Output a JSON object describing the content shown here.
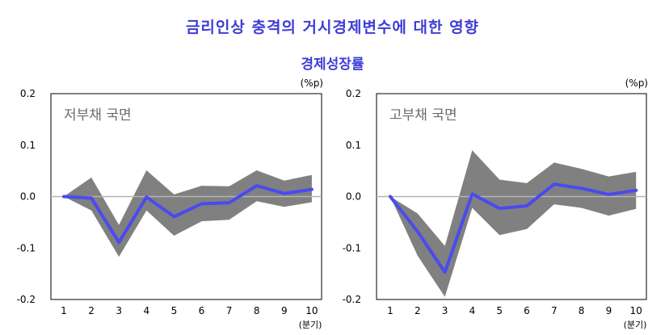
{
  "header": {
    "title": "금리인상 충격의 거시경제변수에 대한 영향",
    "subtitle": "경제성장률"
  },
  "colors": {
    "title": "#3d3dd6",
    "line": "#4a4af0",
    "band": "#808080",
    "panel_label": "#6b6b6b",
    "zero_line": "#b4b4b4"
  },
  "chart_data": [
    {
      "type": "line",
      "panel_label": "저부채 국면",
      "unit_label": "(%p)",
      "x_unit_label": "(분기)",
      "x": [
        1,
        2,
        3,
        4,
        5,
        6,
        7,
        8,
        9,
        10
      ],
      "x_tick_labels": [
        "1",
        "2",
        "3",
        "4",
        "5",
        "6",
        "7",
        "8",
        "9",
        "10"
      ],
      "y_tick_labels": [
        "0.2",
        "0.1",
        "0.0",
        "-0.1",
        "-0.2"
      ],
      "ylim": [
        -0.2,
        0.2
      ],
      "series": [
        {
          "values": [
            0.0,
            -0.003,
            -0.089,
            -0.001,
            -0.039,
            -0.014,
            -0.012,
            0.021,
            0.006,
            0.014
          ]
        }
      ],
      "band": {
        "upper": [
          0.0,
          0.037,
          -0.055,
          0.051,
          0.004,
          0.021,
          0.02,
          0.051,
          0.031,
          0.042
        ],
        "lower": [
          0.0,
          -0.027,
          -0.117,
          -0.027,
          -0.076,
          -0.048,
          -0.045,
          -0.009,
          -0.02,
          -0.011
        ]
      },
      "grid": false,
      "zero_line": true
    },
    {
      "type": "line",
      "panel_label": "고부채 국면",
      "unit_label": "(%p)",
      "x_unit_label": "(분기)",
      "x": [
        1,
        2,
        3,
        4,
        5,
        6,
        7,
        8,
        9,
        10
      ],
      "x_tick_labels": [
        "1",
        "2",
        "3",
        "4",
        "5",
        "6",
        "7",
        "8",
        "9",
        "10"
      ],
      "y_tick_labels": [
        "0.2",
        "0.1",
        "0.0",
        "-0.1",
        "-0.2"
      ],
      "ylim": [
        -0.2,
        0.2
      ],
      "series": [
        {
          "values": [
            0.0,
            -0.068,
            -0.147,
            0.005,
            -0.023,
            -0.018,
            0.024,
            0.016,
            0.004,
            0.012
          ]
        }
      ],
      "band": {
        "upper": [
          0.0,
          -0.033,
          -0.096,
          0.09,
          0.033,
          0.026,
          0.066,
          0.054,
          0.039,
          0.048
        ],
        "lower": [
          0.0,
          -0.115,
          -0.195,
          -0.022,
          -0.075,
          -0.063,
          -0.015,
          -0.022,
          -0.037,
          -0.024
        ]
      },
      "grid": false,
      "zero_line": true
    }
  ]
}
